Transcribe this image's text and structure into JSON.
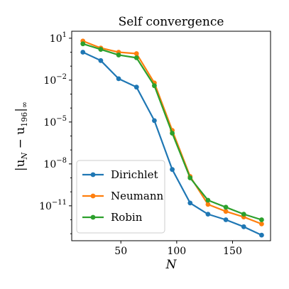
{
  "chart_data": {
    "type": "line",
    "title": "Self convergence",
    "xlabel": "N",
    "ylabel": "|u_N − u_196|_∞",
    "ylabel_main": "|u",
    "ylabel_sub1": "N",
    "ylabel_mid": " − u",
    "ylabel_sub2": "196",
    "ylabel_end": "|",
    "ylabel_sub3": "∞",
    "xlim": [
      6,
      184
    ],
    "ylim_log10": [
      -13.5,
      1.5
    ],
    "yscale": "log",
    "grid": false,
    "legend_position": "lower-left",
    "x_ticks": [
      50,
      100,
      150
    ],
    "x_tick_labels": [
      "50",
      "100",
      "150"
    ],
    "y_ticks_log10": [
      1,
      -2,
      -5,
      -8,
      -11
    ],
    "y_tick_labels": [
      {
        "base": "10",
        "exp": "1"
      },
      {
        "base": "10",
        "exp": "−2"
      },
      {
        "base": "10",
        "exp": "−5"
      },
      {
        "base": "10",
        "exp": "−8"
      },
      {
        "base": "10",
        "exp": "−11"
      }
    ],
    "x": [
      16,
      32,
      48,
      64,
      80,
      96,
      112,
      128,
      144,
      160,
      176
    ],
    "series": [
      {
        "name": "Dirichlet",
        "color": "#1f77b4",
        "log10_values": [
          0.0,
          -0.6,
          -1.9,
          -2.5,
          -4.9,
          -8.4,
          -10.8,
          -11.6,
          -12.0,
          -12.5,
          -13.1
        ]
      },
      {
        "name": "Neumann",
        "color": "#ff7f0e",
        "log10_values": [
          0.8,
          0.3,
          0.0,
          -0.1,
          -2.2,
          -5.6,
          -8.9,
          -10.9,
          -11.4,
          -11.8,
          -12.3
        ]
      },
      {
        "name": "Robin",
        "color": "#2ca02c",
        "log10_values": [
          0.6,
          0.2,
          -0.2,
          -0.4,
          -2.4,
          -5.8,
          -9.0,
          -10.6,
          -11.1,
          -11.6,
          -12.0
        ]
      }
    ]
  }
}
